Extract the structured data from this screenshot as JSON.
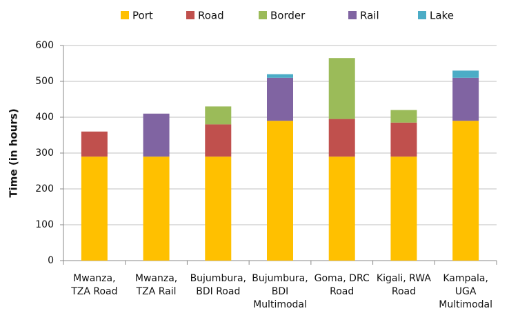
{
  "chart_data": {
    "type": "stacked_bar",
    "y_label": "Time (in hours)",
    "categories": [
      [
        "Mwanza,",
        "TZA Road"
      ],
      [
        "Mwanza,",
        "TZA Rail"
      ],
      [
        "Bujumbura,",
        "BDI Road"
      ],
      [
        "Bujumbura,",
        "BDI",
        "Multimodal"
      ],
      [
        "Goma, DRC",
        "Road"
      ],
      [
        "Kigali, RWA",
        "Road"
      ],
      [
        "Kampala,",
        "UGA",
        "Multimodal"
      ]
    ],
    "series": [
      {
        "name": "Port",
        "color": "#ffc000",
        "values": [
          290,
          290,
          290,
          390,
          290,
          290,
          390
        ]
      },
      {
        "name": "Road",
        "color": "#c0504d",
        "values": [
          70,
          null,
          90,
          null,
          105,
          95,
          null
        ]
      },
      {
        "name": "Border",
        "color": "#9bbb59",
        "values": [
          null,
          null,
          50,
          null,
          170,
          35,
          null
        ]
      },
      {
        "name": "Rail",
        "color": "#8064a2",
        "values": [
          null,
          120,
          null,
          120,
          null,
          null,
          120
        ]
      },
      {
        "name": "Lake",
        "color": "#4bacc6",
        "values": [
          null,
          null,
          null,
          10,
          null,
          null,
          20
        ]
      }
    ],
    "ylim": [
      0,
      600
    ],
    "yticks": [
      0,
      100,
      200,
      300,
      400,
      500,
      600
    ],
    "grid": true,
    "legend": "top"
  }
}
